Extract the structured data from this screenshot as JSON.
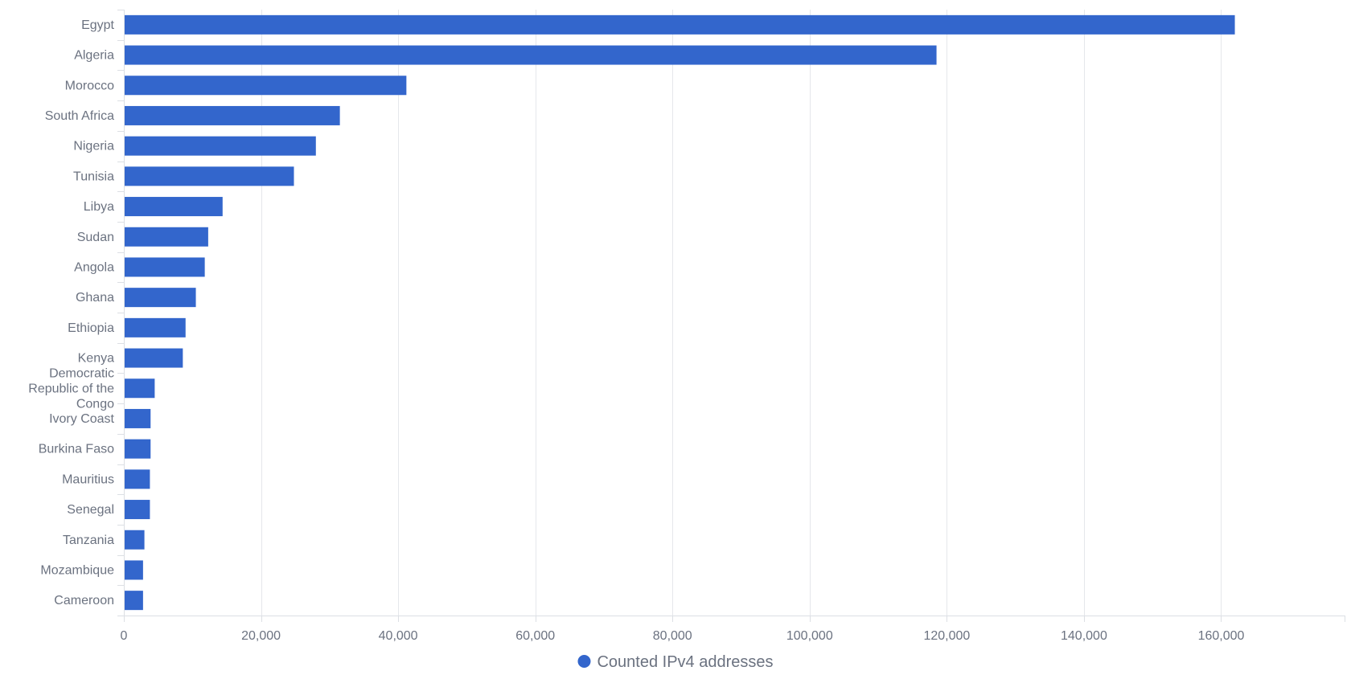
{
  "chart_data": {
    "type": "bar",
    "orientation": "horizontal",
    "title": "",
    "xlabel": "",
    "ylabel": "",
    "categories": [
      "Egypt",
      "Algeria",
      "Morocco",
      "South Africa",
      "Nigeria",
      "Tunisia",
      "Libya",
      "Sudan",
      "Angola",
      "Ghana",
      "Ethiopia",
      "Kenya",
      "Democratic Republic of the Congo",
      "Ivory Coast",
      "Burkina Faso",
      "Mauritius",
      "Senegal",
      "Tanzania",
      "Mozambique",
      "Cameroon"
    ],
    "series": [
      {
        "name": "Counted IPv4 addresses",
        "color": "#3366cc",
        "values": [
          162000,
          118500,
          41200,
          31500,
          28000,
          24800,
          14400,
          12300,
          11800,
          10500,
          9000,
          8600,
          4500,
          3900,
          3900,
          3800,
          3800,
          3000,
          2800,
          2800
        ]
      }
    ],
    "xlim": [
      0,
      178000
    ],
    "x_ticks": [
      0,
      20000,
      40000,
      60000,
      80000,
      100000,
      120000,
      140000,
      160000
    ],
    "x_tick_labels": [
      "0",
      "20,000",
      "40,000",
      "60,000",
      "80,000",
      "100,000",
      "120,000",
      "140,000",
      "160,000"
    ],
    "grid": true,
    "legend_position": "bottom-center"
  }
}
